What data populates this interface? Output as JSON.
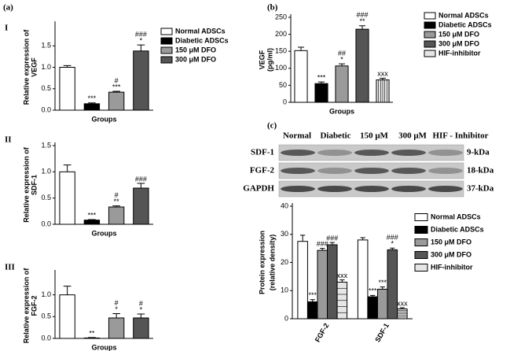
{
  "chart_data": [
    {
      "type": "bar",
      "panel": "(a)",
      "subpanel": "I",
      "ylabel": [
        "Relative expression of",
        "VEGF"
      ],
      "xlabel": "Groups",
      "legend": true,
      "ylim": [
        0,
        2.0
      ],
      "yticks": [
        {
          "value": 0,
          "label": "0.0"
        },
        0.5,
        {
          "value": 1,
          "label": "1.0"
        },
        1.5
      ],
      "series": [
        {
          "name": "Normal ADSCs",
          "color": "#ffffff",
          "values": [
            1.0
          ],
          "errors": [
            0.04
          ],
          "annotations": [
            null
          ]
        },
        {
          "name": "Diabetic ADSCs",
          "color": "#000000",
          "values": [
            0.15
          ],
          "errors": [
            0.02
          ],
          "annotations": [
            [
              "***"
            ]
          ]
        },
        {
          "name": "150 μM DFO",
          "color": "#9a9a9a",
          "values": [
            0.42
          ],
          "errors": [
            0.02
          ],
          "annotations": [
            [
              "#",
              "***"
            ]
          ]
        },
        {
          "name": "300 μM DFO",
          "color": "#555555",
          "values": [
            1.38
          ],
          "errors": [
            0.14
          ],
          "annotations": [
            [
              "###",
              "*"
            ]
          ]
        }
      ]
    },
    {
      "type": "bar",
      "subpanel": "II",
      "ylabel": [
        "Relative expression of",
        "SDF-1"
      ],
      "xlabel": "Groups",
      "legend": false,
      "ylim": [
        0,
        1.5
      ],
      "yticks": [
        {
          "value": 0,
          "label": "0.0"
        },
        0.5,
        {
          "value": 1,
          "label": "1.0"
        },
        1.5
      ],
      "series": [
        {
          "name": "Normal ADSCs",
          "color": "#ffffff",
          "values": [
            1.0
          ],
          "errors": [
            0.13
          ],
          "annotations": [
            null
          ]
        },
        {
          "name": "Diabetic ADSCs",
          "color": "#000000",
          "values": [
            0.08
          ],
          "errors": [
            0.01
          ],
          "annotations": [
            [
              "***"
            ]
          ]
        },
        {
          "name": "150 μM DFO",
          "color": "#9a9a9a",
          "values": [
            0.33
          ],
          "errors": [
            0.02
          ],
          "annotations": [
            [
              "#",
              "**"
            ]
          ]
        },
        {
          "name": "300 μM DFO",
          "color": "#555555",
          "values": [
            0.69
          ],
          "errors": [
            0.09
          ],
          "annotations": [
            [
              "###"
            ]
          ]
        }
      ]
    },
    {
      "type": "bar",
      "subpanel": "III",
      "ylabel": [
        "Relative expression of",
        "FGF-2"
      ],
      "xlabel": "Groups",
      "legend": false,
      "ylim": [
        0,
        1.5
      ],
      "yticks": [
        {
          "value": 0,
          "label": "0.0"
        },
        0.5,
        {
          "value": 1,
          "label": "1.0"
        }
      ],
      "series": [
        {
          "name": "Normal ADSCs",
          "color": "#ffffff",
          "values": [
            1.0
          ],
          "errors": [
            0.2
          ],
          "annotations": [
            null
          ]
        },
        {
          "name": "Diabetic ADSCs",
          "color": "#000000",
          "values": [
            0.01
          ],
          "errors": [
            0.01
          ],
          "annotations": [
            [
              "**"
            ]
          ]
        },
        {
          "name": "150 μM DFO",
          "color": "#9a9a9a",
          "values": [
            0.47
          ],
          "errors": [
            0.1
          ],
          "annotations": [
            [
              "#",
              "*"
            ]
          ]
        },
        {
          "name": "300 μM DFO",
          "color": "#555555",
          "values": [
            0.47
          ],
          "errors": [
            0.09
          ],
          "annotations": [
            [
              "#",
              "*"
            ]
          ]
        }
      ]
    },
    {
      "type": "bar",
      "panel": "(b)",
      "ylabel": [
        "VEGF",
        "(pg/ml)"
      ],
      "xlabel": "Groups",
      "legend": true,
      "ylim": [
        0,
        250
      ],
      "yticks": [
        0,
        50,
        100,
        150,
        200,
        250
      ],
      "series": [
        {
          "name": "Normal ADSCs",
          "color": "#ffffff",
          "values": [
            152
          ],
          "errors": [
            10
          ],
          "annotations": [
            null
          ]
        },
        {
          "name": "Diabetic ADSCs",
          "color": "#000000",
          "values": [
            55
          ],
          "errors": [
            5
          ],
          "annotations": [
            [
              "***"
            ]
          ]
        },
        {
          "name": "150 μM DFO",
          "color": "#9a9a9a",
          "values": [
            107
          ],
          "errors": [
            6
          ],
          "annotations": [
            [
              "##",
              "*"
            ]
          ]
        },
        {
          "name": "300 μM DFO",
          "color": "#555555",
          "values": [
            215
          ],
          "errors": [
            10
          ],
          "annotations": [
            [
              "###",
              "**"
            ]
          ]
        },
        {
          "name": "HIF-inhibitor",
          "color": "#e6e6e6",
          "values": [
            66
          ],
          "errors": [
            5
          ],
          "annotations": [
            [
              "xxx"
            ]
          ]
        }
      ]
    },
    {
      "type": "bar",
      "panel": "(c)",
      "ylabel": [
        "Protein expression",
        "(relative density)"
      ],
      "legend": true,
      "categories": [
        "FGF-2",
        "SDF-1"
      ],
      "ylim": [
        0,
        40
      ],
      "yticks": [
        0,
        10,
        20,
        30,
        40
      ],
      "series": [
        {
          "name": "Normal ADSCs",
          "color": "#ffffff",
          "values": [
            27.5,
            28
          ],
          "errors": [
            2.2,
            0.8
          ],
          "annotations": [
            null,
            null
          ]
        },
        {
          "name": "Diabetic  ADSCs",
          "color": "#000000",
          "values": [
            6,
            7.8
          ],
          "errors": [
            0.8,
            0.5
          ],
          "annotations": [
            [
              "***"
            ],
            [
              "***"
            ]
          ]
        },
        {
          "name": "150 μM DFO",
          "color": "#9a9a9a",
          "values": [
            24.3,
            10.5
          ],
          "errors": [
            0.7,
            0.8
          ],
          "annotations": [
            [
              "###"
            ],
            [
              "***"
            ]
          ]
        },
        {
          "name": "300 μM DFO",
          "color": "#555555",
          "values": [
            26.3,
            24.5
          ],
          "errors": [
            0.8,
            0.6
          ],
          "annotations": [
            [
              "###"
            ],
            [
              "###",
              "*"
            ]
          ]
        },
        {
          "name": "HIF-inhibitor",
          "color": "#e6e6e6",
          "values": [
            13,
            3.5
          ],
          "errors": [
            0.8,
            0.4
          ],
          "annotations": [
            [
              "xxx"
            ],
            [
              "xxx"
            ]
          ]
        }
      ]
    }
  ],
  "blot": {
    "lanes": [
      "Normal",
      "Diabetic",
      "150 μM",
      "300 μM",
      "HIF - Inhibitor"
    ],
    "rows": [
      {
        "name": "SDF-1",
        "size": "9-kDa"
      },
      {
        "name": "FGF-2",
        "size": "18-kDa"
      },
      {
        "name": "GAPDH",
        "size": "37-kDa"
      }
    ]
  }
}
